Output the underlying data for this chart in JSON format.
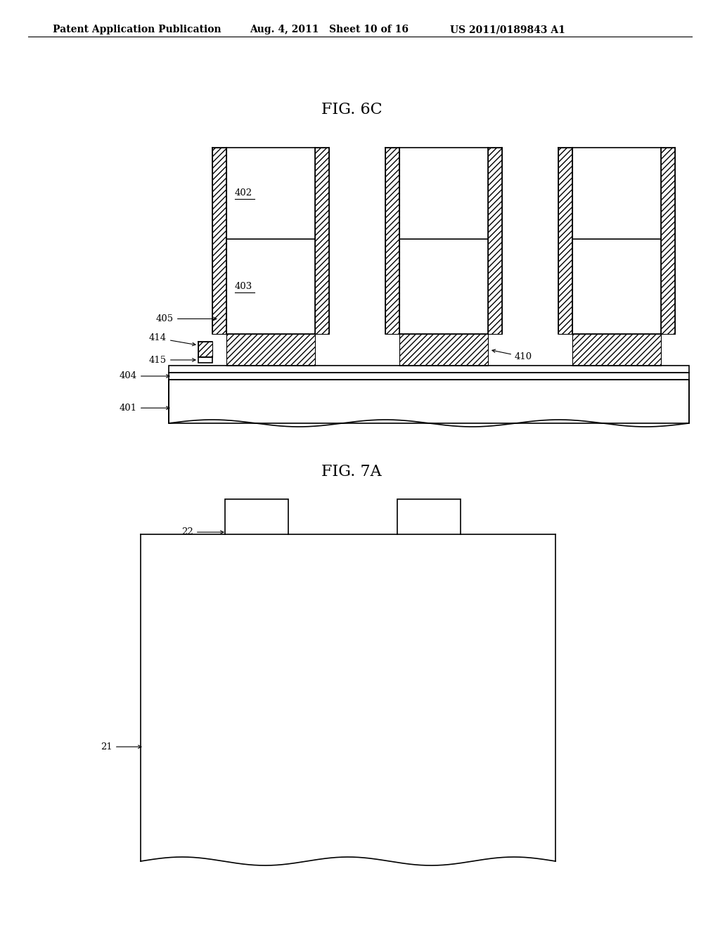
{
  "background_color": "#ffffff",
  "header_left": "Patent Application Publication",
  "header_mid": "Aug. 4, 2011   Sheet 10 of 16",
  "header_right": "US 2011/0189843 A1",
  "fig6c_title": "FIG. 6C",
  "fig7a_title": "FIG. 7A",
  "line_color": "#000000",
  "hatch_color": "#555555",
  "label_color": "#000000"
}
